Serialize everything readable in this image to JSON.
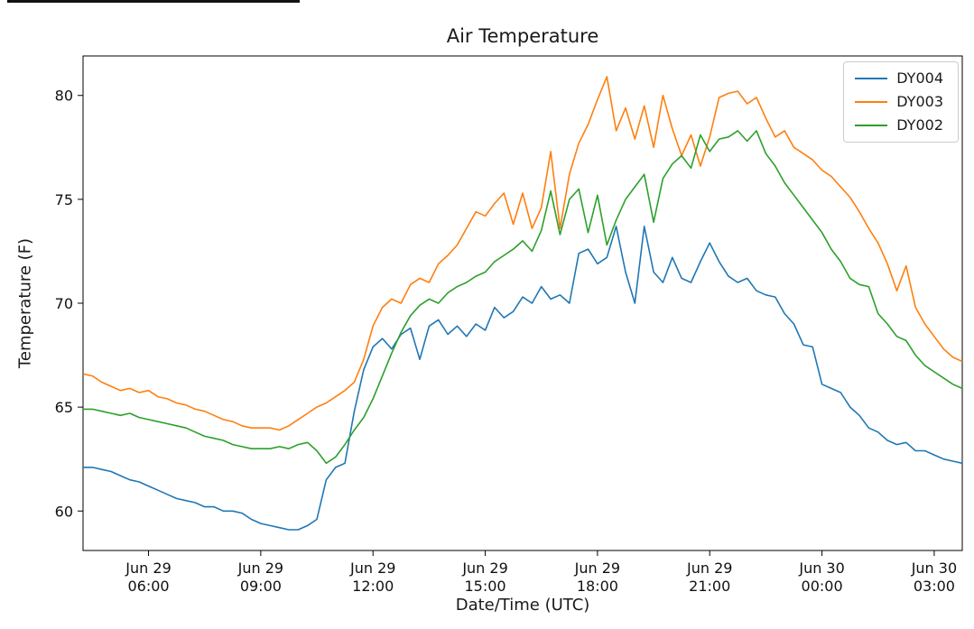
{
  "chart_data": {
    "type": "line",
    "title": "Air Temperature",
    "xlabel": "Date/Time (UTC)",
    "ylabel": "Temperature (F)",
    "grid": false,
    "legend_position": "upper right",
    "x_unit": "hours since Jun 29 00:00 UTC",
    "x_start": 4.25,
    "x_step": 0.25,
    "xlim": [
      4.25,
      27.75
    ],
    "ylim": [
      58.1,
      81.9
    ],
    "x_ticks": [
      {
        "value": 6,
        "line1": "Jun 29",
        "line2": "06:00"
      },
      {
        "value": 9,
        "line1": "Jun 29",
        "line2": "09:00"
      },
      {
        "value": 12,
        "line1": "Jun 29",
        "line2": "12:00"
      },
      {
        "value": 15,
        "line1": "Jun 29",
        "line2": "15:00"
      },
      {
        "value": 18,
        "line1": "Jun 29",
        "line2": "18:00"
      },
      {
        "value": 21,
        "line1": "Jun 29",
        "line2": "21:00"
      },
      {
        "value": 24,
        "line1": "Jun 30",
        "line2": "00:00"
      },
      {
        "value": 27,
        "line1": "Jun 30",
        "line2": "03:00"
      }
    ],
    "y_ticks": [
      60,
      65,
      70,
      75,
      80
    ],
    "series": [
      {
        "name": "DY004",
        "color": "#1f77b4",
        "values": [
          62.1,
          62.1,
          62.0,
          61.9,
          61.7,
          61.5,
          61.4,
          61.2,
          61.0,
          60.8,
          60.6,
          60.5,
          60.4,
          60.2,
          60.2,
          60.0,
          60.0,
          59.9,
          59.6,
          59.4,
          59.3,
          59.2,
          59.1,
          59.1,
          59.3,
          59.6,
          61.5,
          62.1,
          62.3,
          64.8,
          66.8,
          67.9,
          68.3,
          67.8,
          68.5,
          68.8,
          67.3,
          68.9,
          69.2,
          68.5,
          68.9,
          68.4,
          69.0,
          68.7,
          69.8,
          69.3,
          69.6,
          70.3,
          70.0,
          70.8,
          70.2,
          70.4,
          70.0,
          72.4,
          72.6,
          71.9,
          72.2,
          73.7,
          71.5,
          70.0,
          73.7,
          71.5,
          71.0,
          72.2,
          71.2,
          71.0,
          72.0,
          72.9,
          72.0,
          71.3,
          71.0,
          71.2,
          70.6,
          70.4,
          70.3,
          69.5,
          69.0,
          68.0,
          67.9,
          66.1,
          65.9,
          65.7,
          65.0,
          64.6,
          64.0,
          63.8,
          63.4,
          63.2,
          63.3,
          62.9,
          62.9,
          62.7,
          62.5,
          62.4,
          62.3
        ]
      },
      {
        "name": "DY003",
        "color": "#ff7f0e",
        "values": [
          66.6,
          66.5,
          66.2,
          66.0,
          65.8,
          65.9,
          65.7,
          65.8,
          65.5,
          65.4,
          65.2,
          65.1,
          64.9,
          64.8,
          64.6,
          64.4,
          64.3,
          64.1,
          64.0,
          64.0,
          64.0,
          63.9,
          64.1,
          64.4,
          64.7,
          65.0,
          65.2,
          65.5,
          65.8,
          66.2,
          67.3,
          68.9,
          69.8,
          70.2,
          70.0,
          70.9,
          71.2,
          71.0,
          71.9,
          72.3,
          72.8,
          73.6,
          74.4,
          74.2,
          74.8,
          75.3,
          73.8,
          75.3,
          73.6,
          74.6,
          77.3,
          73.6,
          76.2,
          77.7,
          78.6,
          79.8,
          80.9,
          78.3,
          79.4,
          77.9,
          79.5,
          77.5,
          80.0,
          78.4,
          77.1,
          78.1,
          76.6,
          78.0,
          79.9,
          80.1,
          80.2,
          79.6,
          79.9,
          78.9,
          78.0,
          78.3,
          77.5,
          77.2,
          76.9,
          76.4,
          76.1,
          75.6,
          75.1,
          74.4,
          73.6,
          72.9,
          71.9,
          70.6,
          71.8,
          69.8,
          69.0,
          68.4,
          67.8,
          67.4,
          67.2
        ]
      },
      {
        "name": "DY002",
        "color": "#2ca02c",
        "values": [
          64.9,
          64.9,
          64.8,
          64.7,
          64.6,
          64.7,
          64.5,
          64.4,
          64.3,
          64.2,
          64.1,
          64.0,
          63.8,
          63.6,
          63.5,
          63.4,
          63.2,
          63.1,
          63.0,
          63.0,
          63.0,
          63.1,
          63.0,
          63.2,
          63.3,
          62.9,
          62.3,
          62.6,
          63.2,
          63.9,
          64.5,
          65.4,
          66.5,
          67.6,
          68.6,
          69.4,
          69.9,
          70.2,
          70.0,
          70.5,
          70.8,
          71.0,
          71.3,
          71.5,
          72.0,
          72.3,
          72.6,
          73.0,
          72.5,
          73.5,
          75.4,
          73.3,
          75.0,
          75.5,
          73.4,
          75.2,
          72.8,
          74.0,
          75.0,
          75.6,
          76.2,
          73.9,
          76.0,
          76.7,
          77.1,
          76.5,
          78.1,
          77.3,
          77.9,
          78.0,
          78.3,
          77.8,
          78.3,
          77.2,
          76.6,
          75.8,
          75.2,
          74.6,
          74.0,
          73.4,
          72.6,
          72.0,
          71.2,
          70.9,
          70.8,
          69.5,
          69.0,
          68.4,
          68.2,
          67.5,
          67.0,
          66.7,
          66.4,
          66.1,
          65.9
        ]
      }
    ]
  }
}
